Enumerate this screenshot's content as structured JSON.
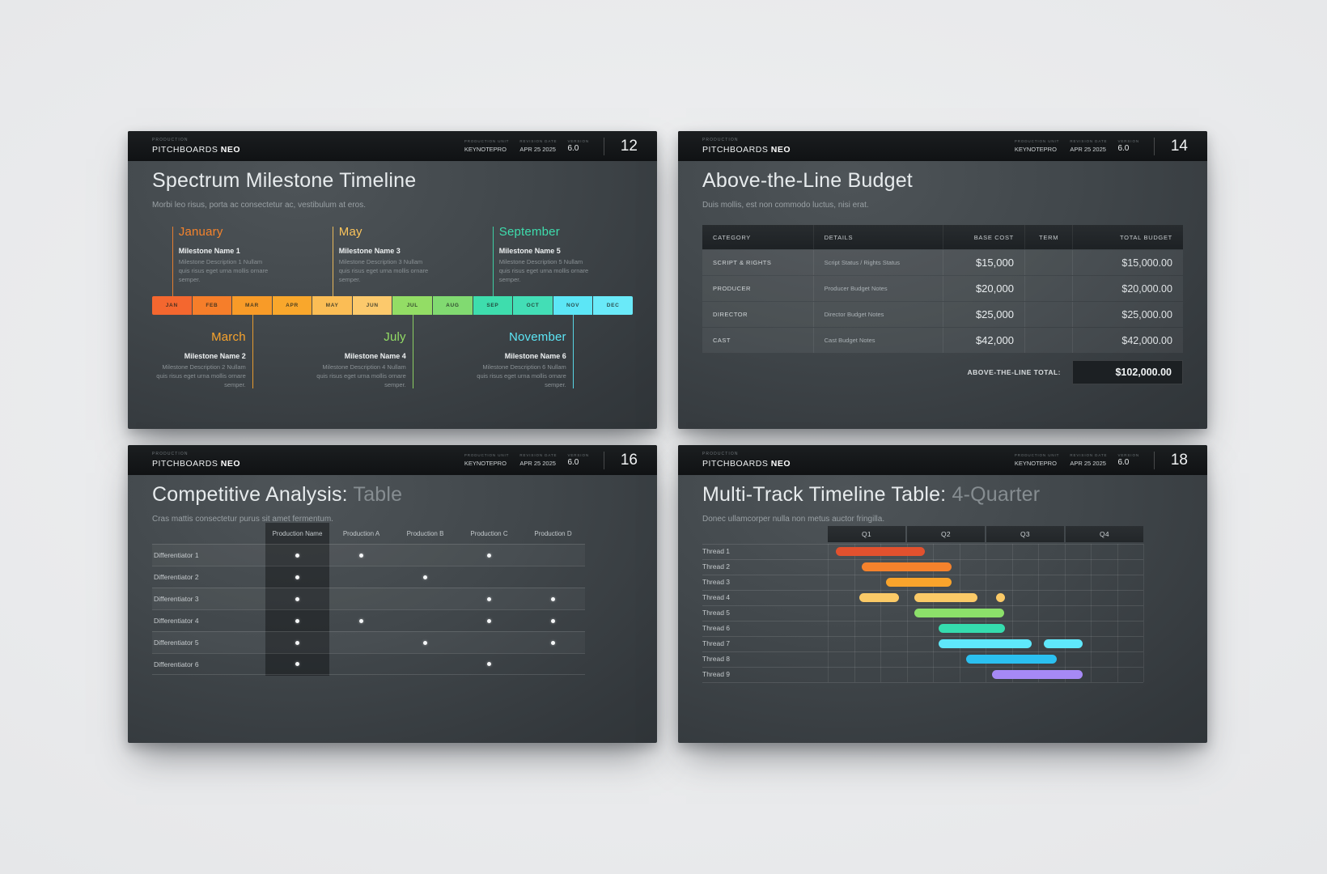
{
  "header_common": {
    "production_label": "PRODUCTION",
    "brand": "PITCHBOARDS",
    "brand_bold": "NEO",
    "unit_label": "PRODUCTION UNIT",
    "unit_value": "KEYNOTEPRO",
    "date_label": "REVISION DATE",
    "date_value": "APR 25 2025",
    "version_label": "VERSION",
    "version_value": "6.0"
  },
  "slides": [
    {
      "id": "spectrum-milestone-timeline",
      "page_number": "12",
      "title": "Spectrum Milestone Timeline",
      "title_muted": "",
      "subtitle": "Morbi leo risus, porta ac consectetur ac, vestibulum at eros.",
      "months": [
        {
          "label": "JAN",
          "color": "#f4672f"
        },
        {
          "label": "FEB",
          "color": "#f67e2a"
        },
        {
          "label": "MAR",
          "color": "#f89b28"
        },
        {
          "label": "APR",
          "color": "#f9a72c"
        },
        {
          "label": "MAY",
          "color": "#fbbd55"
        },
        {
          "label": "JUN",
          "color": "#fcc96c"
        },
        {
          "label": "JUL",
          "color": "#93dd65"
        },
        {
          "label": "AUG",
          "color": "#81da71"
        },
        {
          "label": "SEP",
          "color": "#3eddad"
        },
        {
          "label": "OCT",
          "color": "#43deb6"
        },
        {
          "label": "NOV",
          "color": "#5ce6f6"
        },
        {
          "label": "DEC",
          "color": "#6aeaf9"
        }
      ],
      "milestones": [
        {
          "month": "January",
          "name": "Milestone Name 1",
          "desc": "Milestone Description 1 Nullam quis risus eget urna mollis ornare semper.",
          "color": "#f5832c",
          "side": "top",
          "month_index": 0
        },
        {
          "month": "March",
          "name": "Milestone Name 2",
          "desc": "Milestone Description 2 Nullam quis risus eget urna mollis ornare semper.",
          "color": "#f9a42c",
          "side": "bottom",
          "month_index": 2
        },
        {
          "month": "May",
          "name": "Milestone Name 3",
          "desc": "Milestone Description 3 Nullam quis risus eget urna mollis ornare semper.",
          "color": "#fbc45c",
          "side": "top",
          "month_index": 4
        },
        {
          "month": "July",
          "name": "Milestone Name 4",
          "desc": "Milestone Description 4 Nullam quis risus eget urna mollis ornare semper.",
          "color": "#93dd65",
          "side": "bottom",
          "month_index": 6
        },
        {
          "month": "September",
          "name": "Milestone Name 5",
          "desc": "Milestone Description 5 Nullam quis risus eget urna mollis ornare semper.",
          "color": "#3eddad",
          "side": "top",
          "month_index": 8
        },
        {
          "month": "November",
          "name": "Milestone Name 6",
          "desc": "Milestone Description 6 Nullam quis risus eget urna mollis ornare semper.",
          "color": "#5ce6f6",
          "side": "bottom",
          "month_index": 10
        }
      ]
    },
    {
      "id": "above-the-line-budget",
      "page_number": "14",
      "title": "Above-the-Line Budget",
      "title_muted": "",
      "subtitle": "Duis mollis, est non commodo luctus, nisi erat.",
      "table": {
        "headers": [
          "CATEGORY",
          "DETAILS",
          "BASE COST",
          "TERM",
          "TOTAL BUDGET"
        ],
        "rows": [
          {
            "category": "SCRIPT & RIGHTS",
            "details": "Script Status / Rights Status",
            "base_cost": "$15,000",
            "term": "",
            "total": "$15,000.00"
          },
          {
            "category": "PRODUCER",
            "details": "Producer Budget Notes",
            "base_cost": "$20,000",
            "term": "",
            "total": "$20,000.00"
          },
          {
            "category": "DIRECTOR",
            "details": "Director Budget Notes",
            "base_cost": "$25,000",
            "term": "",
            "total": "$25,000.00"
          },
          {
            "category": "CAST",
            "details": "Cast Budget Notes",
            "base_cost": "$42,000",
            "term": "",
            "total": "$42,000.00"
          }
        ],
        "total_label": "ABOVE-THE-LINE TOTAL:",
        "total_value": "$102,000.00"
      }
    },
    {
      "id": "competitive-analysis-table",
      "page_number": "16",
      "title": "Competitive Analysis:",
      "title_muted": " Table",
      "subtitle": "Cras mattis consectetur purus sit amet fermentum.",
      "matrix": {
        "columns": [
          "Production Name",
          "Production A",
          "Production B",
          "Production C",
          "Production D"
        ],
        "highlight_column": "Production Name",
        "rows": [
          {
            "label": "Differentiator 1",
            "dots": [
              1,
              1,
              0,
              1,
              0
            ]
          },
          {
            "label": "Differentiator 2",
            "dots": [
              1,
              0,
              1,
              0,
              0
            ]
          },
          {
            "label": "Differentiator 3",
            "dots": [
              1,
              0,
              0,
              1,
              1
            ]
          },
          {
            "label": "Differentiator 4",
            "dots": [
              1,
              1,
              0,
              1,
              1
            ]
          },
          {
            "label": "Differentiator 5",
            "dots": [
              1,
              0,
              1,
              0,
              1
            ]
          },
          {
            "label": "Differentiator 6",
            "dots": [
              1,
              0,
              0,
              1,
              0
            ]
          }
        ]
      }
    },
    {
      "id": "multi-track-timeline",
      "page_number": "18",
      "title": "Multi-Track Timeline Table:",
      "title_muted": " 4-Quarter",
      "subtitle": "Donec ullamcorper nulla non metus auctor fringilla.",
      "chart_data": {
        "type": "gantt",
        "quarters": [
          "Q1",
          "Q2",
          "Q3",
          "Q4"
        ],
        "months_total": 12,
        "grid": true,
        "tracks": [
          {
            "label": "Thread 1",
            "color": "#e2512e",
            "bars": [
              [
                0.3,
                3.7
              ]
            ]
          },
          {
            "label": "Thread 2",
            "color": "#f5822c",
            "bars": [
              [
                1.3,
                4.7
              ]
            ]
          },
          {
            "label": "Thread 3",
            "color": "#f9a42c",
            "bars": [
              [
                2.2,
                4.7
              ]
            ]
          },
          {
            "label": "Thread 4",
            "color": "#fbca67",
            "bars": [
              [
                1.2,
                2.7
              ],
              [
                3.3,
                5.7
              ],
              [
                6.4,
                6.75
              ]
            ]
          },
          {
            "label": "Thread 5",
            "color": "#8ce06a",
            "bars": [
              [
                3.3,
                6.7
              ]
            ]
          },
          {
            "label": "Thread 6",
            "color": "#35dcae",
            "bars": [
              [
                4.2,
                6.75
              ]
            ]
          },
          {
            "label": "Thread 7",
            "color": "#5fe8fb",
            "bars": [
              [
                4.2,
                7.75
              ],
              [
                8.2,
                9.7
              ]
            ]
          },
          {
            "label": "Thread 8",
            "color": "#2bc0f0",
            "bars": [
              [
                5.25,
                8.7
              ]
            ]
          },
          {
            "label": "Thread 9",
            "color": "#a689f5",
            "bars": [
              [
                6.25,
                9.7
              ]
            ]
          }
        ]
      }
    }
  ]
}
